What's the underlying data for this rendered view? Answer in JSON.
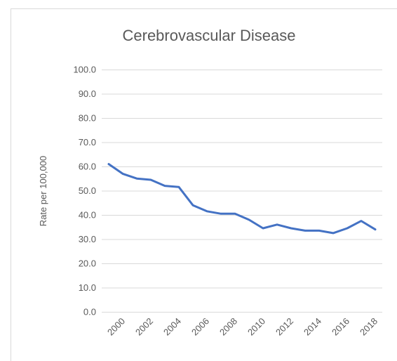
{
  "chart_data": {
    "type": "line",
    "title": "Cerebrovascular Disease",
    "y_label": "Rate per 100,000",
    "categories": [
      null,
      "2000",
      null,
      "2002",
      null,
      "2004",
      null,
      "2006",
      null,
      "2008",
      null,
      "2010",
      null,
      "2012",
      null,
      "2014",
      null,
      "2016",
      null,
      "2018"
    ],
    "series": [
      {
        "name": "Cerebrovascular Disease",
        "color": "#4472c4",
        "values": [
          61.0,
          57.0,
          55.0,
          54.5,
          52.0,
          51.5,
          44.0,
          41.5,
          40.5,
          40.5,
          38.0,
          34.5,
          36.0,
          34.5,
          33.5,
          33.5,
          32.5,
          34.5,
          37.5,
          34.0
        ]
      }
    ],
    "ylim": [
      0,
      100
    ],
    "yticks": [
      {
        "value": 0,
        "label": "0.0"
      },
      {
        "value": 10,
        "label": "10.0"
      },
      {
        "value": 20,
        "label": "20.0"
      },
      {
        "value": 30,
        "label": "30.0"
      },
      {
        "value": 40,
        "label": "40.0"
      },
      {
        "value": 50,
        "label": "50.0"
      },
      {
        "value": 60,
        "label": "60.0"
      },
      {
        "value": 70,
        "label": "70.0"
      },
      {
        "value": 80,
        "label": "80.0"
      },
      {
        "value": 90,
        "label": "90.0"
      },
      {
        "value": 100,
        "label": "100.0"
      }
    ],
    "grid": true
  }
}
